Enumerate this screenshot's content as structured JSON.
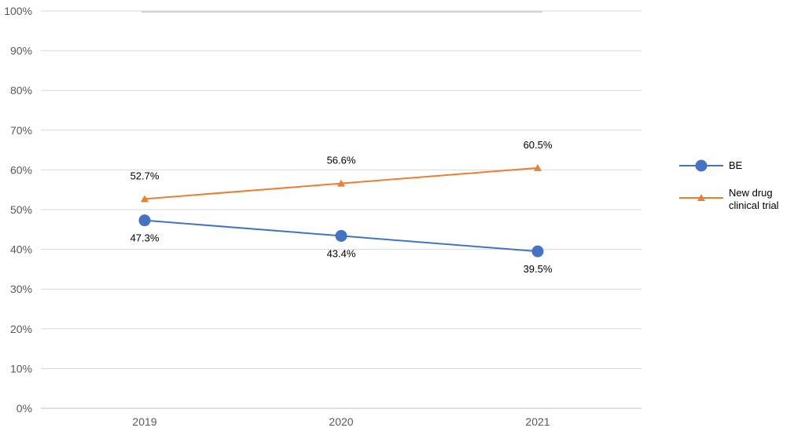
{
  "chart_data": {
    "type": "line",
    "categories": [
      "2019",
      "2020",
      "2021"
    ],
    "ylim": [
      0,
      100
    ],
    "yticks": [
      "0%",
      "10%",
      "20%",
      "30%",
      "40%",
      "50%",
      "60%",
      "70%",
      "80%",
      "90%",
      "100%"
    ],
    "grid": true,
    "legend": "right",
    "series": [
      {
        "name": "BE",
        "values": [
          47.3,
          43.4,
          39.5
        ],
        "labels": [
          "47.3%",
          "43.4%",
          "39.5%"
        ],
        "color": "#4472c4",
        "marker": "circle"
      },
      {
        "name": "New drug clinical trial",
        "legend_lines": [
          "New drug",
          "clinical trial"
        ],
        "values": [
          52.7,
          56.6,
          60.5
        ],
        "labels": [
          "52.7%",
          "56.6%",
          "60.5%"
        ],
        "color": "#ed7d31",
        "marker": "triangle"
      }
    ]
  }
}
